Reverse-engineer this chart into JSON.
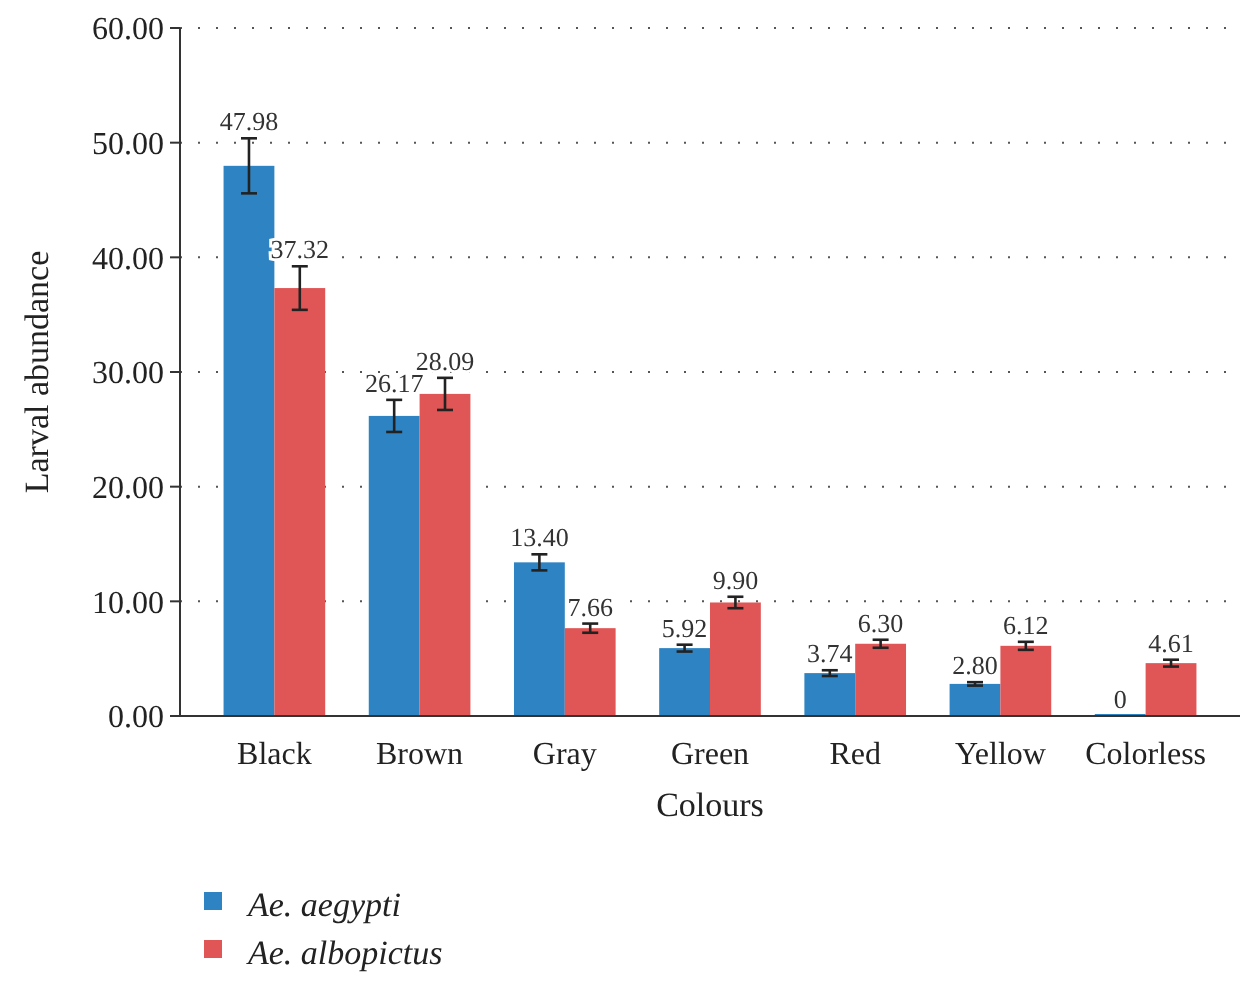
{
  "chart_data": {
    "type": "bar",
    "xlabel": "Colours",
    "ylabel": "Larval abundance",
    "categories": [
      "Black",
      "Brown",
      "Gray",
      "Green",
      "Red",
      "Yellow",
      "Colorless"
    ],
    "series": [
      {
        "name": "Ae. aegypti",
        "color": "#2e83c2",
        "values": [
          47.98,
          26.17,
          13.4,
          5.92,
          3.74,
          2.8,
          0
        ],
        "errors": [
          2.4,
          1.4,
          0.7,
          0.3,
          0.25,
          0.15,
          null
        ],
        "value_labels": [
          "47.98",
          "26.17",
          "13.40",
          "5.92",
          "3.74",
          "2.80",
          "0"
        ]
      },
      {
        "name": "Ae. albopictus",
        "color": "#e05555",
        "values": [
          37.32,
          28.09,
          7.66,
          9.9,
          6.3,
          6.12,
          4.61
        ],
        "errors": [
          1.9,
          1.4,
          0.4,
          0.5,
          0.35,
          0.35,
          0.3
        ],
        "value_labels": [
          "37.32",
          "28.09",
          "7.66",
          "9.90",
          "6.30",
          "6.12",
          "4.61"
        ]
      }
    ],
    "ylim": [
      0,
      60
    ],
    "yticks": [
      {
        "value": 0,
        "label": "0.00"
      },
      {
        "value": 10,
        "label": "10.00"
      },
      {
        "value": 20,
        "label": "20.00"
      },
      {
        "value": 30,
        "label": "30.00"
      },
      {
        "value": 40,
        "label": "40.00"
      },
      {
        "value": 50,
        "label": "50.00"
      },
      {
        "value": 60,
        "label": "60.00"
      }
    ],
    "grid": "y",
    "legend": "bottom left"
  }
}
